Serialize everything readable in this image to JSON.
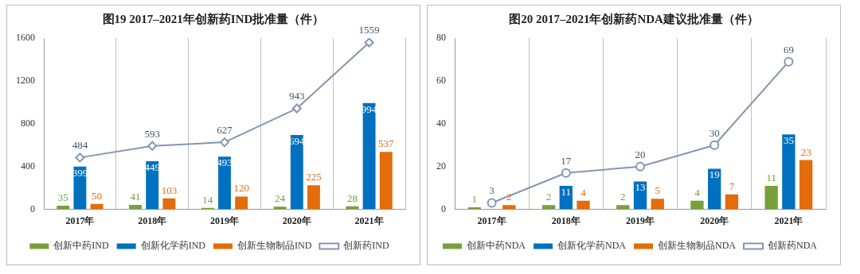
{
  "chart_data": [
    {
      "type": "bar",
      "title": "图19  2017–2021年创新药IND批准量（件）",
      "categories": [
        "2017年",
        "2018年",
        "2019年",
        "2020年",
        "2021年"
      ],
      "series": [
        {
          "name": "创新中药IND",
          "color": "#77a03c",
          "values": [
            35,
            41,
            14,
            24,
            28
          ]
        },
        {
          "name": "创新化学药IND",
          "color": "#0070c0",
          "values": [
            399,
            449,
            493,
            694,
            994
          ]
        },
        {
          "name": "创新生物制品IND",
          "color": "#e46c0a",
          "values": [
            50,
            103,
            120,
            225,
            537
          ]
        },
        {
          "name": "创新药IND",
          "type": "line",
          "color": "#8496b0",
          "values": [
            484,
            593,
            627,
            943,
            1559
          ]
        }
      ],
      "ylim": [
        0,
        1600
      ],
      "yticks": [
        0,
        400,
        800,
        1200,
        1600
      ],
      "grid": "x",
      "legend": "bottom",
      "marker": "diamond",
      "data_labels": true
    },
    {
      "type": "bar",
      "title": "图20  2017–2021年创新药NDA建议批准量（件）",
      "categories": [
        "2017年",
        "2018年",
        "2019年",
        "2020年",
        "2021年"
      ],
      "series": [
        {
          "name": "创新中药NDA",
          "color": "#77a03c",
          "values": [
            1,
            2,
            2,
            4,
            11
          ]
        },
        {
          "name": "创新化学药NDA",
          "color": "#0070c0",
          "values": [
            null,
            11,
            13,
            19,
            35
          ]
        },
        {
          "name": "创新生物制品NDA",
          "color": "#e46c0a",
          "values": [
            2,
            4,
            5,
            7,
            23
          ]
        },
        {
          "name": "创新药NDA",
          "type": "line",
          "color": "#8496b0",
          "values": [
            3,
            17,
            20,
            30,
            69
          ]
        }
      ],
      "ylim": [
        0,
        80
      ],
      "yticks": [
        0,
        20,
        40,
        60,
        80
      ],
      "grid": "x",
      "legend": "bottom",
      "marker": "circle",
      "data_labels": true
    }
  ]
}
